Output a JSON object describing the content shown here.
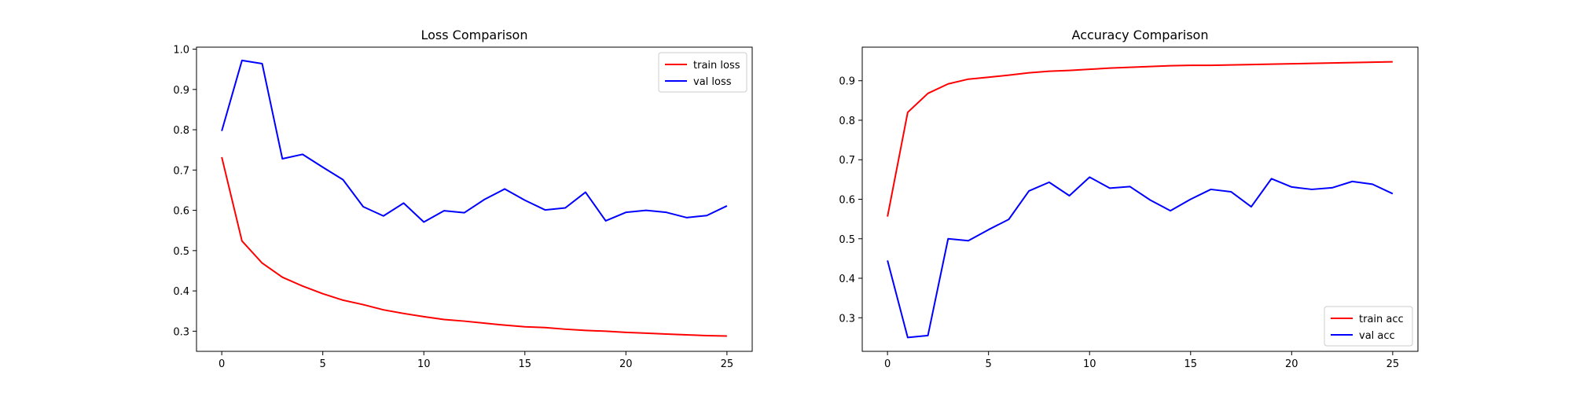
{
  "chart_data": [
    {
      "type": "line",
      "title": "Loss Comparison",
      "xlabel": "",
      "ylabel": "",
      "xlim": [
        -1.25,
        26.25
      ],
      "ylim": [
        0.25,
        1.005
      ],
      "xticks": [
        0,
        5,
        10,
        15,
        20,
        25
      ],
      "yticks": [
        0.3,
        0.4,
        0.5,
        0.6,
        0.7,
        0.8,
        0.9,
        1.0
      ],
      "ytick_labels": [
        "0.3",
        "0.4",
        "0.5",
        "0.6",
        "0.7",
        "0.8",
        "0.9",
        "1.0"
      ],
      "grid": false,
      "legend_position": "upper right",
      "x": [
        0,
        1,
        2,
        3,
        4,
        5,
        6,
        7,
        8,
        9,
        10,
        11,
        12,
        13,
        14,
        15,
        16,
        17,
        18,
        19,
        20,
        21,
        22,
        23,
        24,
        25
      ],
      "series": [
        {
          "name": "train loss",
          "color": "#ff0000",
          "values": [
            0.732,
            0.524,
            0.469,
            0.434,
            0.412,
            0.393,
            0.377,
            0.366,
            0.353,
            0.344,
            0.336,
            0.329,
            0.325,
            0.32,
            0.315,
            0.311,
            0.309,
            0.305,
            0.302,
            0.3,
            0.297,
            0.295,
            0.293,
            0.291,
            0.289,
            0.288
          ]
        },
        {
          "name": "val loss",
          "color": "#0000ff",
          "values": [
            0.797,
            0.972,
            0.964,
            0.728,
            0.739,
            0.707,
            0.676,
            0.609,
            0.586,
            0.618,
            0.571,
            0.599,
            0.594,
            0.627,
            0.653,
            0.625,
            0.601,
            0.606,
            0.645,
            0.574,
            0.595,
            0.6,
            0.595,
            0.582,
            0.587,
            0.611
          ]
        }
      ]
    },
    {
      "type": "line",
      "title": "Accuracy Comparison",
      "xlabel": "",
      "ylabel": "",
      "xlim": [
        -1.25,
        26.25
      ],
      "ylim": [
        0.215,
        0.985
      ],
      "xticks": [
        0,
        5,
        10,
        15,
        20,
        25
      ],
      "yticks": [
        0.3,
        0.4,
        0.5,
        0.6,
        0.7,
        0.8,
        0.9
      ],
      "ytick_labels": [
        "0.3",
        "0.4",
        "0.5",
        "0.6",
        "0.7",
        "0.8",
        "0.9"
      ],
      "grid": false,
      "legend_position": "lower right",
      "x": [
        0,
        1,
        2,
        3,
        4,
        5,
        6,
        7,
        8,
        9,
        10,
        11,
        12,
        13,
        14,
        15,
        16,
        17,
        18,
        19,
        20,
        21,
        22,
        23,
        24,
        25
      ],
      "series": [
        {
          "name": "train acc",
          "color": "#ff0000",
          "values": [
            0.556,
            0.82,
            0.868,
            0.892,
            0.904,
            0.909,
            0.914,
            0.92,
            0.924,
            0.926,
            0.929,
            0.932,
            0.934,
            0.936,
            0.938,
            0.939,
            0.939,
            0.94,
            0.941,
            0.942,
            0.943,
            0.944,
            0.945,
            0.946,
            0.947,
            0.948
          ]
        },
        {
          "name": "val acc",
          "color": "#0000ff",
          "values": [
            0.445,
            0.25,
            0.255,
            0.5,
            0.495,
            0.523,
            0.549,
            0.621,
            0.643,
            0.609,
            0.656,
            0.628,
            0.632,
            0.598,
            0.571,
            0.6,
            0.625,
            0.619,
            0.581,
            0.652,
            0.631,
            0.625,
            0.629,
            0.645,
            0.638,
            0.614
          ]
        }
      ]
    }
  ]
}
